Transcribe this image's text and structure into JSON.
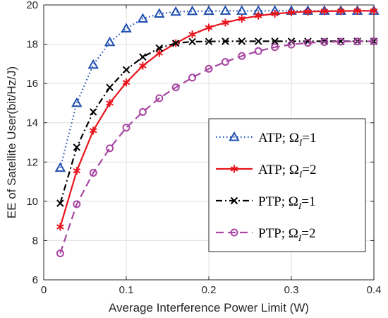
{
  "chart_data": {
    "type": "line",
    "xlabel": "Average Interference Power Limit (W)",
    "ylabel": "EE of Satellite User(bit/Hz/J)",
    "xlim": [
      0,
      0.4
    ],
    "ylim": [
      6,
      20
    ],
    "xticks": [
      0,
      0.1,
      0.2,
      0.3,
      0.4
    ],
    "xtick_labels": [
      "0",
      "0.1",
      "0.2",
      "0.3",
      "0.4"
    ],
    "yticks": [
      6,
      8,
      10,
      12,
      14,
      16,
      18,
      20
    ],
    "ytick_labels": [
      "6",
      "8",
      "10",
      "12",
      "14",
      "16",
      "18",
      "20"
    ],
    "grid": true,
    "legend_position": "center-right",
    "x": [
      0.02,
      0.04,
      0.06,
      0.08,
      0.1,
      0.12,
      0.14,
      0.16,
      0.18,
      0.2,
      0.22,
      0.24,
      0.26,
      0.28,
      0.3,
      0.32,
      0.34,
      0.36,
      0.38,
      0.4
    ],
    "series": [
      {
        "name": "ATP; Ω_I=1",
        "legend_label": {
          "prefix": "ATP; Ω",
          "sub": "I",
          "suffix": "=1"
        },
        "color": "#1f4fb0",
        "line_style": "dotted",
        "marker": "triangle",
        "values": [
          11.7,
          15.0,
          16.95,
          18.1,
          18.8,
          19.3,
          19.55,
          19.65,
          19.68,
          19.69,
          19.7,
          19.7,
          19.7,
          19.7,
          19.7,
          19.7,
          19.7,
          19.7,
          19.7,
          19.7
        ]
      },
      {
        "name": "ATP; Ω_I=2",
        "legend_label": {
          "prefix": "ATP; Ω",
          "sub": "I",
          "suffix": "=2"
        },
        "color": "#e8141c",
        "line_style": "solid",
        "marker": "asterisk",
        "values": [
          8.7,
          11.55,
          13.6,
          15.0,
          16.05,
          16.9,
          17.55,
          18.05,
          18.5,
          18.85,
          19.1,
          19.3,
          19.45,
          19.55,
          19.62,
          19.66,
          19.68,
          19.69,
          19.7,
          19.7
        ]
      },
      {
        "name": "PTP; Ω_I=1",
        "legend_label": {
          "prefix": "PTP; Ω",
          "sub": "I",
          "suffix": "=1"
        },
        "color": "#000000",
        "line_style": "dashdot",
        "marker": "x",
        "values": [
          9.9,
          12.75,
          14.55,
          15.8,
          16.7,
          17.35,
          17.8,
          18.05,
          18.13,
          18.14,
          18.15,
          18.15,
          18.15,
          18.15,
          18.15,
          18.15,
          18.15,
          18.15,
          18.15,
          18.15
        ]
      },
      {
        "name": "PTP; Ω_I=2",
        "legend_label": {
          "prefix": "PTP; Ω",
          "sub": "I",
          "suffix": "=2"
        },
        "color": "#a847a3",
        "line_style": "dashed",
        "marker": "circle",
        "values": [
          7.35,
          9.85,
          11.45,
          12.7,
          13.75,
          14.55,
          15.25,
          15.8,
          16.3,
          16.75,
          17.1,
          17.4,
          17.65,
          17.85,
          17.98,
          18.07,
          18.11,
          18.13,
          18.14,
          18.15
        ]
      }
    ]
  }
}
